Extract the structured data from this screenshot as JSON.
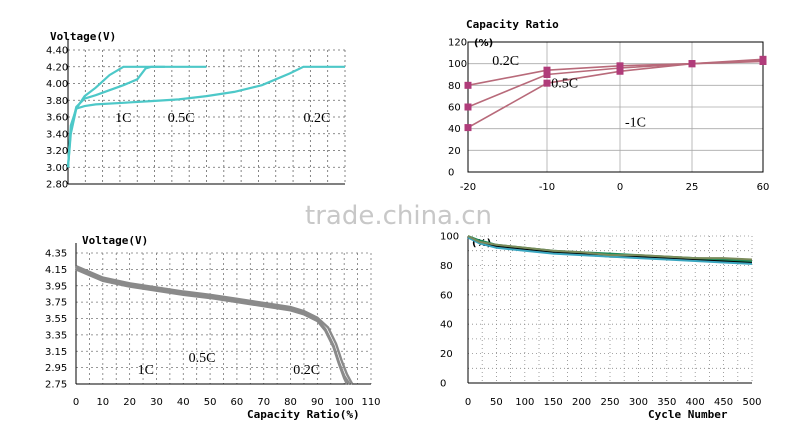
{
  "watermark": "trade.china.cn",
  "chart_data": [
    {
      "id": "c1",
      "type": "line",
      "title": "Voltage(V)",
      "xlabel": "",
      "ylabel": "Voltage(V)",
      "xlim": [
        0,
        100
      ],
      "ylim": [
        2.8,
        4.4
      ],
      "yticks": [
        "4.40",
        "4.20",
        "4.00",
        "3.80",
        "3.60",
        "3.40",
        "3.20",
        "3.00",
        "2.80"
      ],
      "grid": true,
      "line_color": "#4dc8c8",
      "labels": [
        {
          "text": "1C",
          "x": 17,
          "y": 3.54
        },
        {
          "text": "0.5C",
          "x": 36,
          "y": 3.54
        },
        {
          "text": "0.2C",
          "x": 85,
          "y": 3.54
        }
      ],
      "series": [
        {
          "label_ref": "1C",
          "x": [
            0,
            1,
            3,
            6,
            10,
            15,
            20,
            25,
            30,
            35
          ],
          "y": [
            3.0,
            3.4,
            3.7,
            3.85,
            3.95,
            4.1,
            4.2,
            4.2,
            4.2,
            4.2
          ]
        },
        {
          "label_ref": "0.5C",
          "x": [
            0,
            1,
            3,
            6,
            10,
            15,
            20,
            25,
            28,
            30,
            35,
            40,
            45,
            50
          ],
          "y": [
            3.0,
            3.45,
            3.72,
            3.82,
            3.86,
            3.92,
            3.98,
            4.05,
            4.18,
            4.2,
            4.2,
            4.2,
            4.2,
            4.2
          ]
        },
        {
          "label_ref": "0.2C",
          "x": [
            0,
            1,
            3,
            6,
            10,
            20,
            30,
            40,
            50,
            60,
            70,
            75,
            80,
            85,
            90,
            95,
            100
          ],
          "y": [
            3.0,
            3.5,
            3.7,
            3.73,
            3.75,
            3.77,
            3.79,
            3.81,
            3.85,
            3.9,
            3.98,
            4.05,
            4.12,
            4.2,
            4.2,
            4.2,
            4.2
          ]
        }
      ]
    },
    {
      "id": "c2",
      "type": "line",
      "title": "Capacity Ratio",
      "unit": "(%)",
      "xlabel": "",
      "ylabel": "Capacity Ratio",
      "categories": [
        "-20",
        "-10",
        "0",
        "25",
        "60"
      ],
      "ylim": [
        0,
        120
      ],
      "yticks": [
        "120",
        "100",
        "80",
        "60",
        "40",
        "20",
        "0"
      ],
      "grid": true,
      "line_color": "#b86a7a",
      "marker_color": "#b03c7a",
      "labels": [
        {
          "text": "0.2C",
          "x": 0.15,
          "y": 99
        },
        {
          "text": "0.5C",
          "x": 0.35,
          "y": 78
        },
        {
          "text": "-1C",
          "x": 0.6,
          "y": 42
        }
      ],
      "series": [
        {
          "name": "0.2C",
          "values": [
            80,
            94,
            98,
            100,
            104
          ]
        },
        {
          "name": "0.5C",
          "values": [
            60,
            90,
            96,
            100,
            103
          ]
        },
        {
          "name": "1C",
          "values": [
            41,
            82,
            93,
            100,
            102
          ]
        }
      ]
    },
    {
      "id": "c3",
      "type": "line",
      "title": "Voltage(V)",
      "xlabel": "Capacity Ratio(%)",
      "ylabel": "Voltage(V)",
      "xlim": [
        0,
        110
      ],
      "xticks": [
        "0",
        "10",
        "20",
        "30",
        "40",
        "50",
        "60",
        "70",
        "80",
        "90",
        "100",
        "110"
      ],
      "ylim": [
        2.75,
        4.35
      ],
      "yticks": [
        "4.35",
        "4.15",
        "3.95",
        "3.75",
        "3.55",
        "3.35",
        "3.15",
        "2.95",
        "2.75"
      ],
      "grid": true,
      "line_color": "#8a8a8a",
      "labels": [
        {
          "text": "1C",
          "x": 23,
          "y": 2.87
        },
        {
          "text": "0.5C",
          "x": 42,
          "y": 3.02
        },
        {
          "text": "0.2C",
          "x": 81,
          "y": 2.87
        }
      ],
      "series": [
        {
          "label_ref": "1C",
          "x": [
            0,
            5,
            10,
            20,
            30,
            40,
            50,
            60,
            70,
            80,
            85,
            90,
            93,
            96,
            98,
            100,
            101
          ],
          "y": [
            4.15,
            4.08,
            4.01,
            3.94,
            3.89,
            3.84,
            3.8,
            3.75,
            3.7,
            3.65,
            3.6,
            3.52,
            3.4,
            3.2,
            3.0,
            2.82,
            2.75
          ]
        },
        {
          "label_ref": "0.5C",
          "x": [
            0,
            5,
            10,
            20,
            30,
            40,
            50,
            60,
            70,
            80,
            85,
            90,
            93,
            96,
            98,
            100,
            102
          ],
          "y": [
            4.17,
            4.1,
            4.03,
            3.96,
            3.91,
            3.86,
            3.82,
            3.77,
            3.72,
            3.67,
            3.62,
            3.54,
            3.42,
            3.22,
            3.02,
            2.85,
            2.75
          ]
        },
        {
          "label_ref": "0.2C",
          "x": [
            0,
            5,
            10,
            20,
            30,
            40,
            50,
            60,
            70,
            80,
            85,
            90,
            94,
            97,
            99,
            101,
            103
          ],
          "y": [
            4.19,
            4.12,
            4.05,
            3.98,
            3.93,
            3.88,
            3.84,
            3.79,
            3.74,
            3.69,
            3.64,
            3.56,
            3.44,
            3.24,
            3.04,
            2.87,
            2.75
          ]
        }
      ]
    },
    {
      "id": "c4",
      "type": "line",
      "title": "",
      "unit": "(%)",
      "xlabel": "Cycle  Number",
      "ylabel": "",
      "xlim": [
        0,
        500
      ],
      "xticks": [
        "0",
        "50",
        "100",
        "150",
        "200",
        "250",
        "300",
        "350",
        "400",
        "450",
        "500"
      ],
      "ylim": [
        0,
        100
      ],
      "yticks": [
        "100",
        "80",
        "60",
        "40",
        "20",
        "0"
      ],
      "grid": true,
      "series": [
        {
          "color": "#000000",
          "x": [
            0,
            20,
            50,
            100,
            150,
            200,
            250,
            300,
            350,
            400,
            450,
            500
          ],
          "y": [
            99,
            96,
            93,
            91,
            89,
            88,
            86,
            86,
            85,
            84,
            83,
            82
          ]
        },
        {
          "color": "#1a8a5a",
          "x": [
            0,
            20,
            50,
            100,
            150,
            200,
            250,
            300,
            350,
            400,
            450,
            500
          ],
          "y": [
            100,
            97,
            94,
            92,
            90,
            89,
            88,
            87,
            86,
            85,
            84,
            83
          ]
        },
        {
          "color": "#3aa6c0",
          "x": [
            0,
            20,
            50,
            100,
            150,
            200,
            250,
            300,
            350,
            400,
            450,
            500
          ],
          "y": [
            99,
            95,
            92,
            90,
            88,
            87,
            86,
            85,
            84,
            83,
            82,
            81
          ]
        },
        {
          "color": "#7a8a5a",
          "x": [
            0,
            20,
            50,
            100,
            150,
            200,
            250,
            300,
            350,
            400,
            450,
            500
          ],
          "y": [
            100,
            96,
            94,
            92,
            90,
            89,
            87,
            87,
            86,
            85,
            85,
            84
          ]
        }
      ]
    }
  ]
}
